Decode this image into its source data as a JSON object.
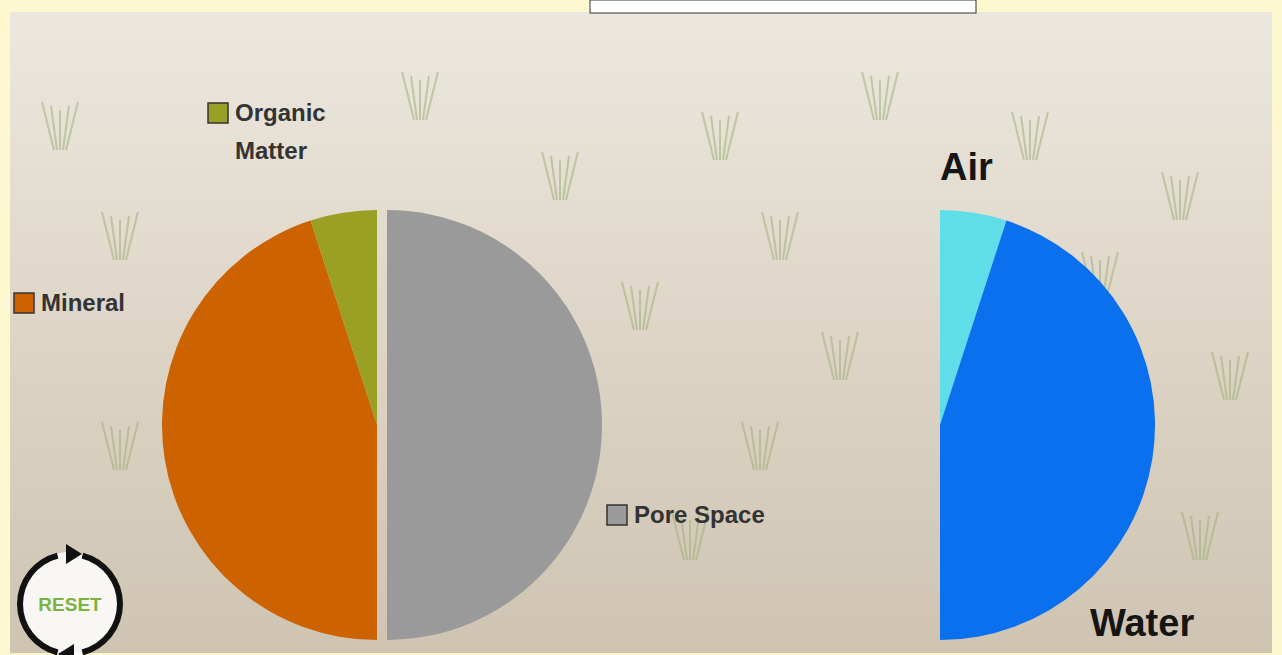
{
  "chart_data": [
    {
      "type": "pie",
      "categories": [
        "Pore Space",
        "Mineral",
        "Organic Matter"
      ],
      "values": [
        50,
        45,
        5
      ],
      "colors": [
        "#9a9a9a",
        "#cc6300",
        "#99a024"
      ]
    },
    {
      "type": "pie",
      "categories": [
        "Air",
        "Water"
      ],
      "values": [
        5,
        45
      ],
      "colors": [
        "#5fdde8",
        "#0b70ee"
      ]
    }
  ],
  "controls": {
    "reset": "RESET"
  }
}
